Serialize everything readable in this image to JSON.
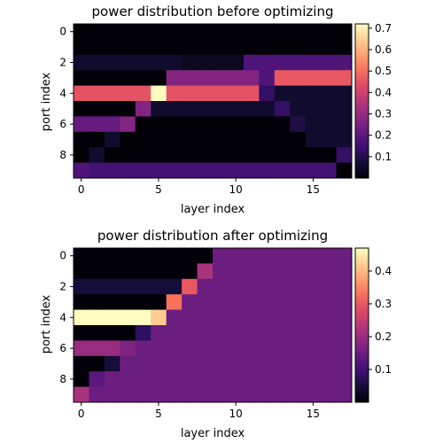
{
  "chart_data": [
    {
      "type": "heatmap",
      "title": "power distribution before optimizing",
      "xlabel": "layer index",
      "ylabel": "port index",
      "x_ticks": [
        0,
        5,
        10,
        15
      ],
      "y_ticks": [
        0,
        2,
        4,
        6,
        8
      ],
      "colormap": "magma",
      "colorbar": {
        "min": 0.0,
        "max": 0.72,
        "ticks": [
          0.1,
          0.2,
          0.3,
          0.4,
          0.5,
          0.6,
          0.7
        ]
      },
      "values": [
        [
          0.005,
          0.005,
          0.005,
          0.005,
          0.005,
          0.005,
          0.005,
          0.005,
          0.005,
          0.005,
          0.005,
          0.005,
          0.005,
          0.005,
          0.005,
          0.005,
          0.005,
          0.005
        ],
        [
          0.005,
          0.005,
          0.005,
          0.005,
          0.005,
          0.005,
          0.005,
          0.005,
          0.005,
          0.005,
          0.005,
          0.005,
          0.005,
          0.005,
          0.005,
          0.005,
          0.005,
          0.005
        ],
        [
          0.06,
          0.06,
          0.06,
          0.06,
          0.06,
          0.06,
          0.06,
          0.04,
          0.04,
          0.04,
          0.04,
          0.18,
          0.18,
          0.18,
          0.18,
          0.18,
          0.18,
          0.18
        ],
        [
          0.005,
          0.005,
          0.005,
          0.005,
          0.005,
          0.005,
          0.27,
          0.27,
          0.27,
          0.27,
          0.27,
          0.27,
          0.18,
          0.46,
          0.46,
          0.46,
          0.46,
          0.46
        ],
        [
          0.45,
          0.45,
          0.45,
          0.45,
          0.45,
          0.72,
          0.45,
          0.45,
          0.45,
          0.45,
          0.45,
          0.45,
          0.13,
          0.06,
          0.06,
          0.06,
          0.06,
          0.06
        ],
        [
          0.005,
          0.005,
          0.005,
          0.005,
          0.27,
          0.06,
          0.06,
          0.06,
          0.06,
          0.06,
          0.06,
          0.06,
          0.06,
          0.13,
          0.06,
          0.06,
          0.06,
          0.06
        ],
        [
          0.22,
          0.22,
          0.22,
          0.27,
          0.005,
          0.005,
          0.005,
          0.005,
          0.005,
          0.005,
          0.005,
          0.005,
          0.005,
          0.005,
          0.09,
          0.06,
          0.06,
          0.06
        ],
        [
          0.005,
          0.005,
          0.06,
          0.005,
          0.005,
          0.005,
          0.005,
          0.005,
          0.005,
          0.005,
          0.005,
          0.005,
          0.005,
          0.005,
          0.005,
          0.06,
          0.06,
          0.06
        ],
        [
          0.005,
          0.06,
          0.005,
          0.005,
          0.005,
          0.005,
          0.005,
          0.005,
          0.005,
          0.005,
          0.005,
          0.005,
          0.005,
          0.005,
          0.005,
          0.005,
          0.005,
          0.13
        ],
        [
          0.18,
          0.16,
          0.16,
          0.16,
          0.16,
          0.16,
          0.16,
          0.16,
          0.16,
          0.16,
          0.16,
          0.16,
          0.16,
          0.16,
          0.16,
          0.16,
          0.16,
          0.005
        ]
      ]
    },
    {
      "type": "heatmap",
      "title": "power distribution after optimizing",
      "xlabel": "layer index",
      "ylabel": "port index",
      "x_ticks": [
        0,
        5,
        10,
        15
      ],
      "y_ticks": [
        0,
        2,
        4,
        6,
        8
      ],
      "colormap": "magma",
      "colorbar": {
        "min": 0.0,
        "max": 0.47,
        "ticks": [
          0.1,
          0.2,
          0.3,
          0.4
        ]
      },
      "values": [
        [
          0.005,
          0.005,
          0.005,
          0.005,
          0.005,
          0.005,
          0.005,
          0.005,
          0.005,
          0.15,
          0.15,
          0.15,
          0.15,
          0.15,
          0.15,
          0.15,
          0.15,
          0.15
        ],
        [
          0.005,
          0.005,
          0.005,
          0.005,
          0.005,
          0.005,
          0.005,
          0.005,
          0.22,
          0.15,
          0.15,
          0.15,
          0.15,
          0.15,
          0.15,
          0.15,
          0.15,
          0.15
        ],
        [
          0.05,
          0.05,
          0.05,
          0.05,
          0.05,
          0.05,
          0.05,
          0.3,
          0.15,
          0.15,
          0.15,
          0.15,
          0.15,
          0.15,
          0.15,
          0.15,
          0.15,
          0.15
        ],
        [
          0.005,
          0.005,
          0.005,
          0.005,
          0.005,
          0.005,
          0.33,
          0.15,
          0.15,
          0.15,
          0.15,
          0.15,
          0.15,
          0.15,
          0.15,
          0.15,
          0.15,
          0.15
        ],
        [
          0.47,
          0.47,
          0.47,
          0.47,
          0.47,
          0.42,
          0.15,
          0.15,
          0.15,
          0.15,
          0.15,
          0.15,
          0.15,
          0.15,
          0.15,
          0.15,
          0.15,
          0.15
        ],
        [
          0.005,
          0.005,
          0.005,
          0.005,
          0.08,
          0.15,
          0.15,
          0.15,
          0.15,
          0.15,
          0.15,
          0.15,
          0.15,
          0.15,
          0.15,
          0.15,
          0.15,
          0.15
        ],
        [
          0.2,
          0.2,
          0.2,
          0.17,
          0.15,
          0.15,
          0.15,
          0.15,
          0.15,
          0.15,
          0.15,
          0.15,
          0.15,
          0.15,
          0.15,
          0.15,
          0.15,
          0.15
        ],
        [
          0.005,
          0.005,
          0.05,
          0.15,
          0.15,
          0.15,
          0.15,
          0.15,
          0.15,
          0.15,
          0.15,
          0.15,
          0.15,
          0.15,
          0.15,
          0.15,
          0.15,
          0.15
        ],
        [
          0.005,
          0.13,
          0.15,
          0.15,
          0.15,
          0.15,
          0.15,
          0.15,
          0.15,
          0.15,
          0.15,
          0.15,
          0.15,
          0.15,
          0.15,
          0.15,
          0.15,
          0.15
        ],
        [
          0.22,
          0.15,
          0.15,
          0.15,
          0.15,
          0.15,
          0.15,
          0.15,
          0.15,
          0.15,
          0.15,
          0.15,
          0.15,
          0.15,
          0.15,
          0.15,
          0.15,
          0.15
        ]
      ]
    }
  ]
}
